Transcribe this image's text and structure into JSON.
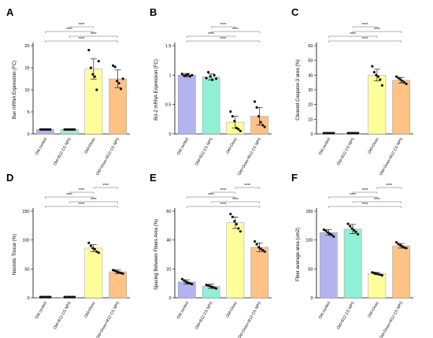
{
  "colors": {
    "old_control": "#b3b3f0",
    "old_b12": "#8ff0d6",
    "old_doxo": "#ffff99",
    "old_doxo_b12": "#ffc285"
  },
  "chart_data": [
    {
      "panel": "A",
      "type": "bar",
      "ylabel": "Bax mRNA Expression (FC)",
      "ylim": [
        0,
        20
      ],
      "yticks": [
        0,
        5,
        10,
        15,
        20
      ],
      "categories": [
        "Old control",
        "Old+B12 CS NPS",
        "Old+Doxo",
        "Old+Doxo+B12 CS NPS"
      ],
      "values": [
        1.0,
        1.0,
        14.7,
        12.5
      ],
      "errors": [
        0.1,
        0.1,
        2.3,
        2.0
      ],
      "points": [
        [
          1,
          1,
          1,
          1,
          1,
          1
        ],
        [
          1,
          1,
          1,
          1,
          1,
          1
        ],
        [
          19.0,
          15.0,
          13.5,
          13.0,
          10.0,
          16.5
        ],
        [
          15.5,
          15.2,
          12.0,
          11.5,
          10.2,
          12.5
        ]
      ],
      "significance": [
        {
          "a": 0,
          "b": 3,
          "label": "****"
        },
        {
          "a": 1,
          "b": 3,
          "label": "****"
        },
        {
          "a": 0,
          "b": 2,
          "label": "****"
        },
        {
          "a": 1,
          "b": 2,
          "label": "****"
        }
      ]
    },
    {
      "panel": "B",
      "type": "bar",
      "ylabel": "Bcl-2 mRNA Expression (FC)",
      "ylim": [
        0,
        1.5
      ],
      "yticks": [
        0,
        0.5,
        1.0,
        1.5
      ],
      "categories": [
        "Old control",
        "Old+B12 CS NPS",
        "Old+Doxo",
        "Old+Doxo+B12 CS NPS"
      ],
      "values": [
        1.0,
        0.97,
        0.2,
        0.3
      ],
      "errors": [
        0.03,
        0.05,
        0.1,
        0.15
      ],
      "points": [
        [
          1.02,
          0.99,
          1.0,
          1.01,
          0.98,
          1.0
        ],
        [
          0.95,
          1.05,
          0.98,
          0.92,
          1.0,
          0.94
        ],
        [
          0.38,
          0.3,
          0.22,
          0.1,
          0.08,
          0.05
        ],
        [
          0.55,
          0.45,
          0.3,
          0.2,
          0.15,
          0.12
        ]
      ],
      "significance": [
        {
          "a": 0,
          "b": 3,
          "label": "****"
        },
        {
          "a": 0,
          "b": 2,
          "label": "****"
        },
        {
          "a": 1,
          "b": 3,
          "label": "****"
        },
        {
          "a": 1,
          "b": 2,
          "label": "****"
        }
      ]
    },
    {
      "panel": "C",
      "type": "bar",
      "ylabel": "Cleaved Caspase-3 area (%)",
      "ylim": [
        0,
        60
      ],
      "yticks": [
        0,
        10,
        20,
        30,
        40,
        50,
        60
      ],
      "categories": [
        "Old control",
        "Old+B12 CS NPS",
        "Old+Doxo",
        "Old+Doxo+B12 CS NPS"
      ],
      "values": [
        0.5,
        0.5,
        40,
        36.5
      ],
      "errors": [
        0.2,
        0.2,
        4,
        2
      ],
      "points": [
        [
          0.5,
          0.5,
          0.5,
          0.5,
          0.5,
          0.5
        ],
        [
          0.5,
          0.5,
          0.5,
          0.5,
          0.5,
          0.5
        ],
        [
          46,
          42,
          40,
          39,
          37,
          33
        ],
        [
          39,
          38,
          37,
          36,
          35,
          34
        ]
      ],
      "significance": [
        {
          "a": 0,
          "b": 3,
          "label": "****"
        },
        {
          "a": 0,
          "b": 2,
          "label": "****"
        },
        {
          "a": 1,
          "b": 3,
          "label": "****"
        },
        {
          "a": 1,
          "b": 2,
          "label": "****"
        }
      ]
    },
    {
      "panel": "D",
      "type": "bar",
      "ylabel": "Necrotic Tissue (%)",
      "ylim": [
        0,
        150
      ],
      "yticks": [
        0,
        50,
        100,
        150
      ],
      "categories": [
        "Old control",
        "Old+B12 CS NPS",
        "Old+Doxo",
        "Old+Doxo+B12 CS NPS"
      ],
      "values": [
        0,
        0,
        86,
        45
      ],
      "errors": [
        0,
        0,
        6,
        3
      ],
      "points": [
        [
          0,
          0,
          0,
          0,
          0,
          0
        ],
        [
          0,
          0,
          0,
          0,
          0,
          0
        ],
        [
          95,
          90,
          86,
          84,
          80,
          78
        ],
        [
          48,
          47,
          45,
          44,
          43,
          42
        ]
      ],
      "significance": [
        {
          "a": 0,
          "b": 3,
          "label": "****"
        },
        {
          "a": 1,
          "b": 3,
          "label": "****"
        },
        {
          "a": 0,
          "b": 2,
          "label": "****"
        },
        {
          "a": 1,
          "b": 2,
          "label": "****"
        },
        {
          "a": 2,
          "b": 3,
          "label": "****"
        }
      ]
    },
    {
      "panel": "E",
      "type": "bar",
      "ylabel": "Spacing Between Fibers Area (%)",
      "ylim": [
        0,
        60
      ],
      "yticks": [
        0,
        20,
        40,
        60
      ],
      "categories": [
        "Old control",
        "Old+B12 CS NPS",
        "Old+Doxo",
        "Old+Doxo+B12 CS NPS"
      ],
      "values": [
        11,
        8,
        52,
        35
      ],
      "errors": [
        1.5,
        1.5,
        4,
        3
      ],
      "points": [
        [
          13,
          12,
          11,
          10.5,
          10,
          9.5
        ],
        [
          9,
          8.5,
          8,
          7.5,
          7,
          6.5
        ],
        [
          58,
          56,
          53,
          51,
          48,
          46
        ],
        [
          39,
          37,
          35,
          34,
          33,
          32
        ]
      ],
      "significance": [
        {
          "a": 0,
          "b": 3,
          "label": "****"
        },
        {
          "a": 1,
          "b": 3,
          "label": "****"
        },
        {
          "a": 0,
          "b": 2,
          "label": "****"
        },
        {
          "a": 1,
          "b": 2,
          "label": "****"
        },
        {
          "a": 2,
          "b": 3,
          "label": "****"
        }
      ]
    },
    {
      "panel": "F",
      "type": "bar",
      "ylabel": "Fiber average area (um2)",
      "ylim": [
        0,
        150
      ],
      "yticks": [
        0,
        50,
        100,
        150
      ],
      "categories": [
        "Old control",
        "Old+B12 CS NPS",
        "Old+Doxo",
        "Old+Doxo+B12 CS NPS"
      ],
      "values": [
        113,
        119,
        42,
        90
      ],
      "errors": [
        5,
        8,
        2,
        4
      ],
      "points": [
        [
          118,
          116,
          113,
          111,
          109,
          106
        ],
        [
          128,
          124,
          120,
          117,
          114,
          110
        ],
        [
          44,
          43,
          42,
          41,
          40,
          39
        ],
        [
          96,
          93,
          91,
          89,
          87,
          86
        ]
      ],
      "significance": [
        {
          "a": 0,
          "b": 3,
          "label": "****"
        },
        {
          "a": 1,
          "b": 3,
          "label": "****"
        },
        {
          "a": 0,
          "b": 2,
          "label": "****"
        },
        {
          "a": 1,
          "b": 2,
          "label": "****"
        },
        {
          "a": 2,
          "b": 3,
          "label": "****"
        }
      ]
    }
  ]
}
